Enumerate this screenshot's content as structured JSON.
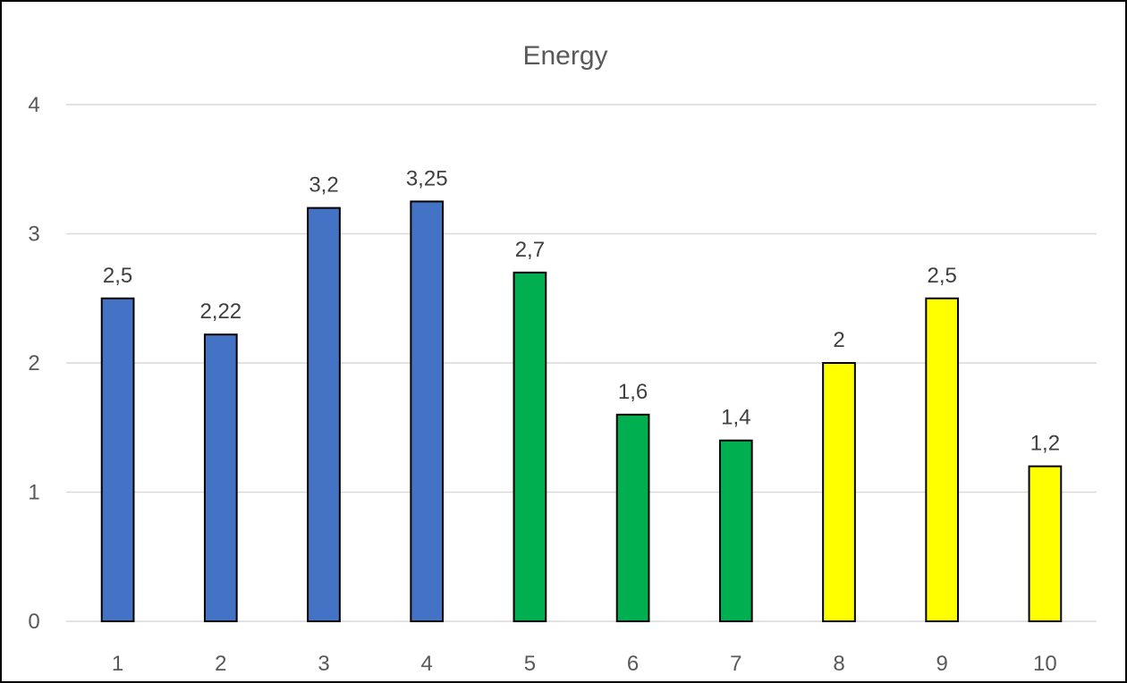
{
  "chart_data": {
    "type": "bar",
    "title": "Energy",
    "xlabel": "",
    "ylabel": "",
    "categories": [
      "1",
      "2",
      "3",
      "4",
      "5",
      "6",
      "7",
      "8",
      "9",
      "10"
    ],
    "values": [
      2.5,
      2.22,
      3.2,
      3.25,
      2.7,
      1.6,
      1.4,
      2,
      2.5,
      1.2
    ],
    "data_labels": [
      "2,5",
      "2,22",
      "3,2",
      "3,25",
      "2,7",
      "1,6",
      "1,4",
      "2",
      "2,5",
      "1,2"
    ],
    "bar_colors": [
      "#4472C4",
      "#4472C4",
      "#4472C4",
      "#4472C4",
      "#00B050",
      "#00B050",
      "#00B050",
      "#FFFF00",
      "#FFFF00",
      "#FFFF00"
    ],
    "bar_outline_color": "#000000",
    "ylim": [
      0,
      4
    ],
    "yticks": [
      0,
      1,
      2,
      3,
      4
    ],
    "ytick_labels": [
      "0",
      "1",
      "2",
      "3",
      "4"
    ],
    "grid": true,
    "grid_color": "#D9D9D9",
    "legend": "none"
  }
}
